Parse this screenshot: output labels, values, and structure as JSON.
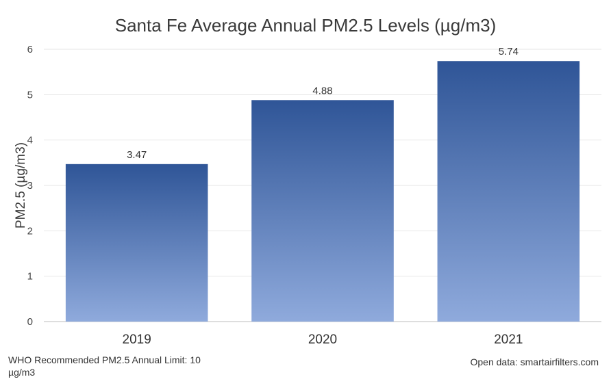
{
  "footer": {
    "note": "WHO Recommended PM2.5 Annual Limit: 10 µg/m3",
    "source": "Open data: smartairfilters.com"
  },
  "colors": {
    "bar_top": "#2f5597",
    "bar_bottom": "#8faadc"
  },
  "chart_data": {
    "type": "bar",
    "title": "Santa Fe Average Annual PM2.5 Levels (µg/m3)",
    "xlabel": "",
    "ylabel": "PM2.5 (µg/m3)",
    "categories": [
      "2019",
      "2020",
      "2021"
    ],
    "values": [
      3.47,
      4.88,
      5.74
    ],
    "data_labels": [
      "3.47",
      "4.88",
      "5.74"
    ],
    "ylim": [
      0,
      6
    ],
    "yticks": [
      0,
      1,
      2,
      3,
      4,
      5,
      6
    ],
    "grid": true,
    "legend": "none"
  }
}
